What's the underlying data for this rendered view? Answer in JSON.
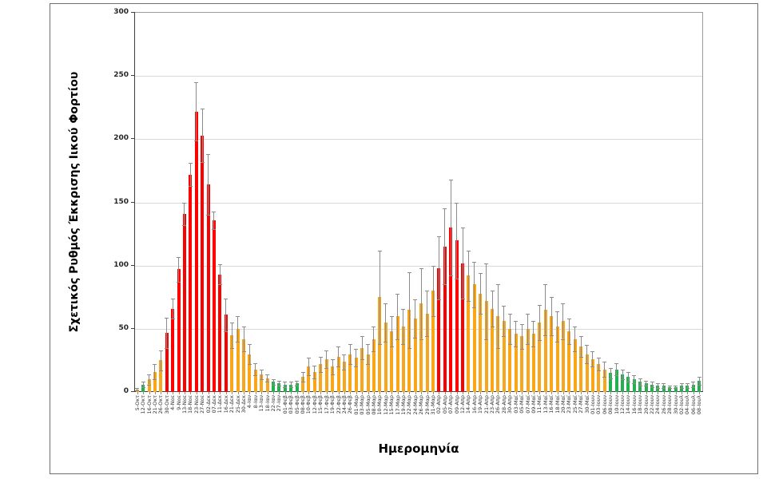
{
  "figure": {
    "background": "#ffffff",
    "border_color": "#6e6e6e"
  },
  "chart_data": {
    "type": "bar",
    "title": "",
    "xlabel": "Ημερομηνία",
    "ylabel": "Σχετικός Ρυθμός Έκκρισης Ιικού Φορτίου",
    "ylim": [
      0,
      300
    ],
    "yticks": [
      0,
      50,
      100,
      150,
      200,
      250,
      300
    ],
    "grid": true,
    "legend_position": "none",
    "error_bars": true,
    "palette": {
      "r": "#FF0000",
      "o": "#FAA61A",
      "g": "#23B14D",
      "error": "#8c8c8c",
      "gridline": "#d9d9d9"
    },
    "categories": [
      "5-Οκτ",
      "12-Οκτ",
      "16-Οκτ",
      "21-Οκτ",
      "26-Οκτ",
      "30-Οκτ",
      "4-Νοε",
      "9-Νοε",
      "13-Νοε",
      "18-Νοε",
      "23-Νοε",
      "27-Νοε",
      "02-Δεκ",
      "07-Δεκ",
      "11-Δεκ",
      "16-Δεκ",
      "21-Δεκ",
      "25-Δεκ",
      "30-Δεκ",
      "4-Ιαν",
      "8-Ιαν",
      "13-Ιαν",
      "18-Ιαν",
      "22-Ιαν",
      "27-Ιαν",
      "01-Φεβ",
      "03-Φεβ",
      "05-Φεβ",
      "08-Φεβ",
      "10-Φεβ",
      "12-Φεβ",
      "15-Φεβ",
      "17-Φεβ",
      "19-Φεβ",
      "22-Φεβ",
      "24-Φεβ",
      "26-Φεβ",
      "01-Μαρ",
      "03-Μαρ",
      "05-Μαρ",
      "08-Μαρ",
      "10-Μαρ",
      "12-Μαρ",
      "15-Μαρ",
      "17-Μαρ",
      "19-Μαρ",
      "22-Μαρ",
      "24-Μαρ",
      "26-Μαρ",
      "29-Μαρ",
      "31-Μαρ",
      "02-Απρ",
      "05-Απρ",
      "07-Απρ",
      "09-Απρ",
      "12-Απρ",
      "14-Απρ",
      "16-Απρ",
      "19-Απρ",
      "21-Απρ",
      "23-Απρ",
      "26-Απρ",
      "28-Απρ",
      "30-Απρ",
      "03-Μαϊ",
      "05-Μαϊ",
      "07-Μαϊ",
      "09-Μαϊ",
      "11-Μαϊ",
      "13-Μαϊ",
      "16-Μαϊ",
      "18-Μαϊ",
      "20-Μαϊ",
      "23-Μαϊ",
      "25-Μαϊ",
      "27-Μαϊ",
      "30-Μαϊ",
      "01-Ιουν",
      "03-Ιουν",
      "06-Ιουν",
      "08-Ιουν",
      "10-Ιουν",
      "12-Ιουν",
      "14-Ιουν",
      "16-Ιουν",
      "18-Ιουν",
      "20-Ιουν",
      "22-Ιουν",
      "24-Ιουν",
      "26-Ιουν",
      "28-Ιουν",
      "30-Ιουν",
      "02-Ιουλ",
      "04-Ιουλ",
      "06-Ιουλ",
      "08-Ιουλ"
    ],
    "series": [
      {
        "name": "Σχετικός Ρυθμός Έκκρισης Ιικού Φορτίου",
        "values": [
          2,
          6,
          10,
          16,
          25,
          47,
          66,
          97,
          141,
          172,
          222,
          203,
          164,
          136,
          93,
          61,
          45,
          50,
          42,
          30,
          18,
          14,
          11,
          8,
          7,
          6,
          6,
          7,
          12,
          20,
          16,
          22,
          26,
          20,
          28,
          24,
          30,
          27,
          35,
          30,
          42,
          75,
          55,
          48,
          60,
          52,
          65,
          58,
          70,
          62,
          80,
          98,
          115,
          130,
          120,
          102,
          92,
          85,
          78,
          72,
          66,
          60,
          56,
          50,
          46,
          44,
          50,
          46,
          55,
          65,
          60,
          52,
          56,
          48,
          42,
          36,
          30,
          26,
          22,
          18,
          15,
          18,
          14,
          12,
          10,
          8,
          7,
          6,
          5,
          5,
          4,
          4,
          5,
          5,
          6,
          9
        ],
        "errors": [
          1,
          2,
          4,
          6,
          8,
          12,
          8,
          10,
          9,
          9,
          23,
          21,
          24,
          7,
          8,
          13,
          10,
          10,
          10,
          8,
          5,
          4,
          3,
          2,
          2,
          2,
          2,
          2,
          4,
          7,
          5,
          6,
          7,
          6,
          8,
          6,
          8,
          7,
          9,
          8,
          10,
          37,
          15,
          12,
          18,
          14,
          30,
          15,
          28,
          18,
          20,
          25,
          30,
          38,
          30,
          28,
          20,
          18,
          16,
          30,
          14,
          25,
          12,
          12,
          10,
          10,
          12,
          10,
          14,
          20,
          15,
          12,
          14,
          10,
          10,
          8,
          7,
          6,
          5,
          6,
          4,
          5,
          4,
          4,
          3,
          3,
          2,
          2,
          2,
          2,
          1,
          1,
          2,
          2,
          2,
          3
        ],
        "colors": [
          "o",
          "g",
          "o",
          "o",
          "o",
          "r",
          "r",
          "r",
          "r",
          "r",
          "r",
          "r",
          "r",
          "r",
          "r",
          "r",
          "o",
          "o",
          "o",
          "o",
          "o",
          "o",
          "o",
          "g",
          "g",
          "g",
          "g",
          "g",
          "o",
          "o",
          "o",
          "o",
          "o",
          "o",
          "o",
          "o",
          "o",
          "o",
          "o",
          "o",
          "o",
          "o",
          "o",
          "o",
          "o",
          "o",
          "o",
          "o",
          "o",
          "o",
          "o",
          "r",
          "r",
          "r",
          "r",
          "r",
          "o",
          "o",
          "o",
          "o",
          "o",
          "o",
          "o",
          "o",
          "o",
          "o",
          "o",
          "o",
          "o",
          "o",
          "o",
          "o",
          "o",
          "o",
          "o",
          "o",
          "o",
          "o",
          "o",
          "o",
          "g",
          "g",
          "g",
          "g",
          "g",
          "g",
          "g",
          "g",
          "g",
          "g",
          "g",
          "g",
          "g",
          "g",
          "g",
          "g"
        ]
      }
    ]
  }
}
